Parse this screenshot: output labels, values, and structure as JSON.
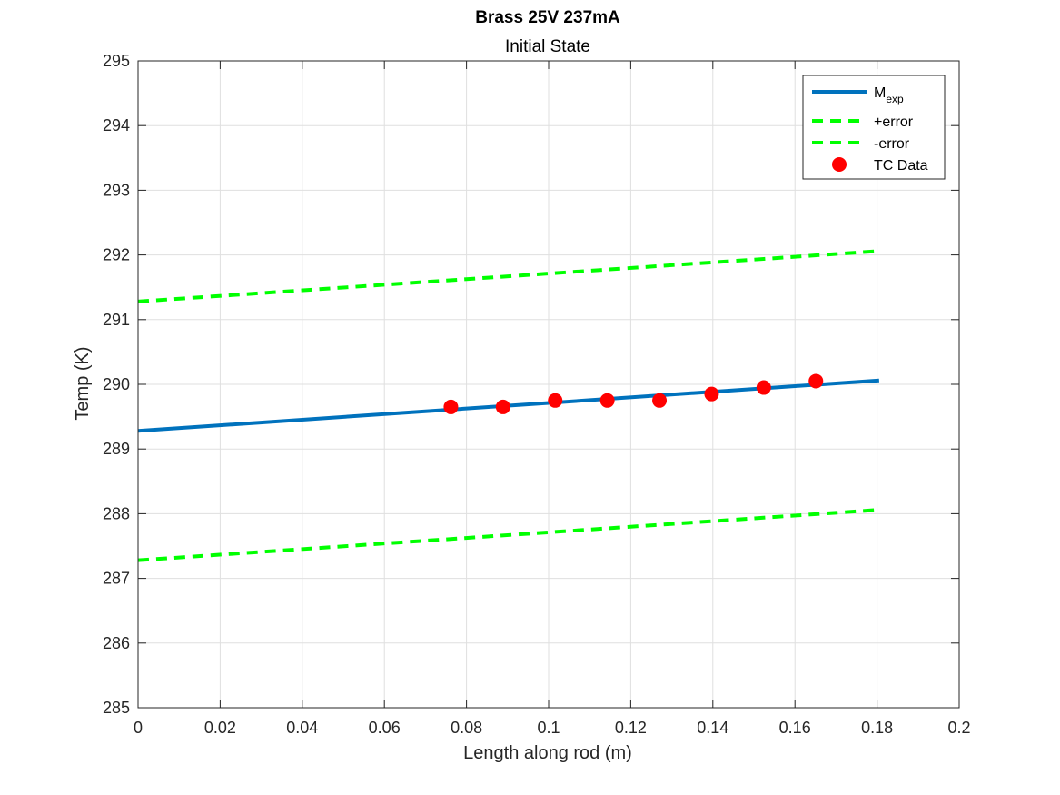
{
  "chart_data": {
    "type": "line",
    "title": "Brass 25V 237mA",
    "subtitle": "Initial State",
    "xlabel": "Length along rod (m)",
    "ylabel": "Temp (K)",
    "xlim": [
      0,
      0.2
    ],
    "ylim": [
      285,
      295
    ],
    "xticks": [
      0,
      0.02,
      0.04,
      0.06,
      0.08,
      0.1,
      0.12,
      0.14,
      0.16,
      0.18,
      0.2
    ],
    "yticks": [
      285,
      286,
      287,
      288,
      289,
      290,
      291,
      292,
      293,
      294,
      295
    ],
    "xtick_labels": [
      "0",
      "0.02",
      "0.04",
      "0.06",
      "0.08",
      "0.1",
      "0.12",
      "0.14",
      "0.16",
      "0.18",
      "0.2"
    ],
    "ytick_labels": [
      "285",
      "286",
      "287",
      "288",
      "289",
      "290",
      "291",
      "292",
      "293",
      "294",
      "295"
    ],
    "grid": true,
    "legend_position": "top-right",
    "series": [
      {
        "name": "M",
        "name_subscript": "exp",
        "style": "solid",
        "color": "#0072BD",
        "x": [
          0,
          0.1805
        ],
        "y": [
          289.28,
          290.06
        ]
      },
      {
        "name": "+error",
        "style": "dashed",
        "color": "#00FF00",
        "x": [
          0,
          0.1805
        ],
        "y": [
          291.28,
          292.06
        ]
      },
      {
        "name": "-error",
        "style": "dashed",
        "color": "#00FF00",
        "x": [
          0,
          0.1805
        ],
        "y": [
          287.28,
          288.06
        ]
      },
      {
        "name": "TC Data",
        "style": "markers",
        "color": "#FF0000",
        "x": [
          0.0762,
          0.0889,
          0.1016,
          0.1143,
          0.127,
          0.1397,
          0.1524,
          0.1651
        ],
        "y": [
          289.65,
          289.65,
          289.75,
          289.75,
          289.75,
          289.85,
          289.95,
          290.05
        ]
      }
    ]
  }
}
